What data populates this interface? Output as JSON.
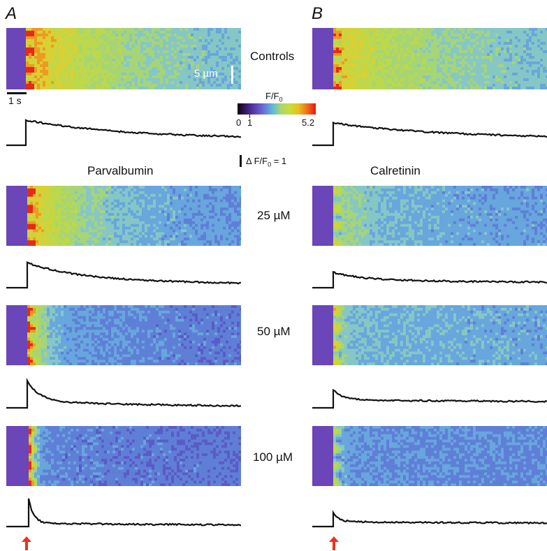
{
  "panels": {
    "a_letter": "A",
    "b_letter": "B",
    "a_title": "Parvalbumin",
    "b_title": "Calretinin"
  },
  "conditions": [
    "Controls",
    "25 µM",
    "50 µM",
    "100 µM"
  ],
  "scale_bars": {
    "space": "5 µm",
    "time": "1 s",
    "df_label": "Δ F/F",
    "df_sub": "0",
    "df_value": " = 1"
  },
  "colorbar": {
    "title_main": "F/F",
    "title_sub": "0",
    "min": "0",
    "one": "1",
    "max": "5.2",
    "stops": [
      "#120012",
      "#3a1a6e",
      "#5b3fb0",
      "#6a6fd8",
      "#5fb8e0",
      "#a9d86a",
      "#c8dc3a",
      "#e8c01e",
      "#f07018",
      "#e21818"
    ]
  },
  "colors": {
    "baseline": "#6a46b8",
    "arrow": "#e8341c",
    "trace": "#111111"
  }
}
